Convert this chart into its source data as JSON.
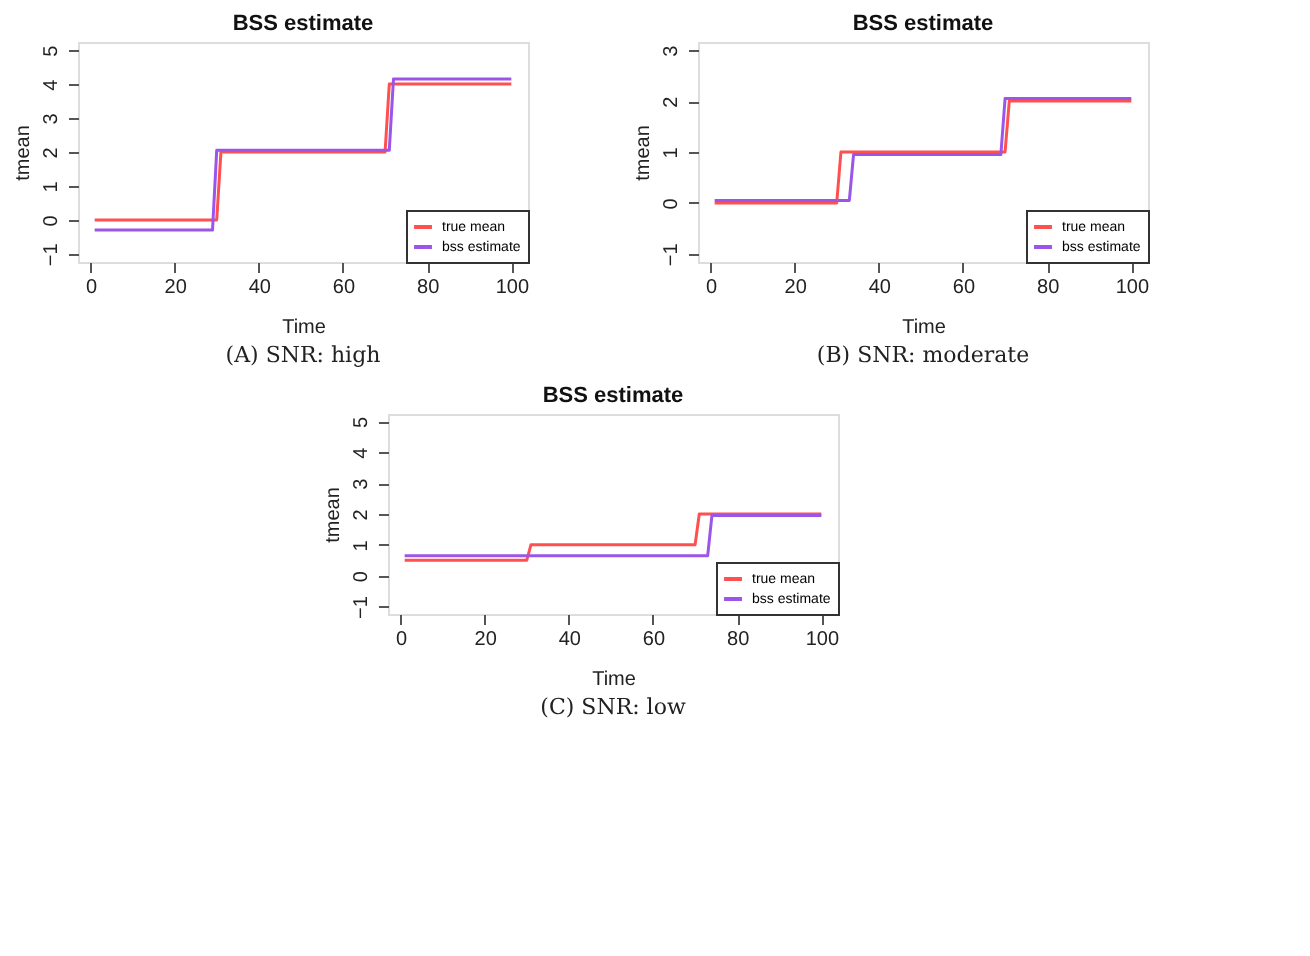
{
  "chart_data": [
    {
      "type": "line",
      "title": "BSS estimate",
      "xlabel": "Time",
      "ylabel": "tmean",
      "xlim": [
        -2.96,
        103.96
      ],
      "xticks": [
        0,
        20,
        40,
        60,
        80,
        100
      ],
      "ylim": [
        -1.24,
        5.24
      ],
      "yticks": [
        -1,
        0,
        1,
        2,
        3,
        4,
        5
      ],
      "grid": false,
      "legend": "bottom right",
      "annotations": [
        "(A) SNR: high"
      ],
      "series": [
        {
          "name": "true mean",
          "color": "#ff5050",
          "x": [
            1,
            30,
            31,
            70,
            71,
            100
          ],
          "values": [
            0,
            0,
            2,
            2,
            4,
            4
          ]
        },
        {
          "name": "bss estimate",
          "color": "#9b55e8",
          "x": [
            1,
            29,
            30,
            71,
            72,
            100
          ],
          "values": [
            -0.3,
            -0.3,
            2.05,
            2.05,
            4.15,
            4.15
          ]
        }
      ]
    },
    {
      "type": "line",
      "title": "BSS estimate",
      "xlabel": "Time",
      "ylabel": "tmean",
      "xlim": [
        -2.96,
        103.96
      ],
      "xticks": [
        0,
        20,
        40,
        60,
        80,
        100
      ],
      "ylim": [
        -1.16,
        3.16
      ],
      "yticks": [
        -1,
        0,
        1,
        2,
        3
      ],
      "grid": false,
      "legend": "bottom right",
      "annotations": [
        "(B) SNR: moderate"
      ],
      "series": [
        {
          "name": "true mean",
          "color": "#ff5050",
          "x": [
            1,
            30,
            31,
            70,
            71,
            100
          ],
          "values": [
            0,
            0,
            1,
            1,
            2,
            2
          ]
        },
        {
          "name": "bss estimate",
          "color": "#9b55e8",
          "x": [
            1,
            33,
            34,
            69,
            70,
            100
          ],
          "values": [
            0.05,
            0.05,
            0.95,
            0.95,
            2.05,
            2.05
          ]
        }
      ]
    },
    {
      "type": "line",
      "title": "BSS estimate",
      "xlabel": "Time",
      "ylabel": "tmean",
      "xlim": [
        -2.96,
        103.96
      ],
      "xticks": [
        0,
        20,
        40,
        60,
        80,
        100
      ],
      "ylim": [
        -1.24,
        5.24
      ],
      "yticks": [
        -1,
        0,
        1,
        2,
        3,
        4,
        5
      ],
      "grid": false,
      "legend": "bottom right",
      "annotations": [
        "(C) SNR: low"
      ],
      "series": [
        {
          "name": "true mean",
          "color": "#ff5050",
          "x": [
            1,
            30,
            31,
            70,
            71,
            100
          ],
          "values": [
            0.5,
            0.5,
            1,
            1,
            2,
            2
          ]
        },
        {
          "name": "bss estimate",
          "color": "#9b55e8",
          "x": [
            1,
            73,
            74,
            100
          ],
          "values": [
            0.65,
            0.65,
            1.95,
            1.95
          ]
        }
      ]
    }
  ]
}
